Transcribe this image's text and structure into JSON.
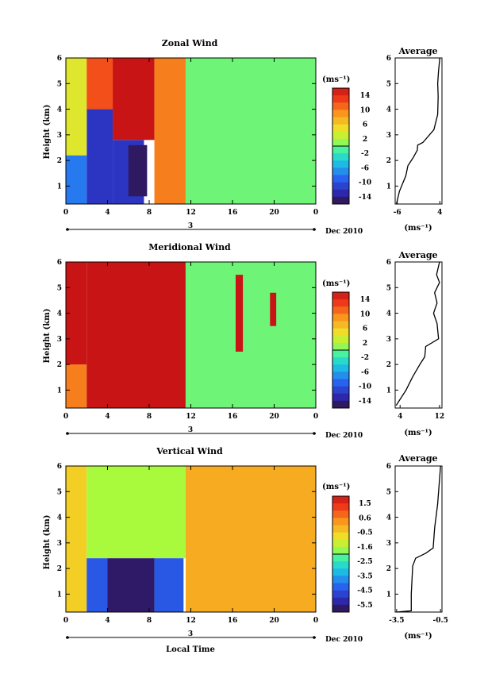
{
  "figure": {
    "local_time_label": "Local Time",
    "dec_label": "Dec 2010",
    "day_label": "3",
    "unit_label": "(ms⁻¹)"
  },
  "chart_data": [
    {
      "type": "heatmap",
      "title": "Zonal Wind",
      "xlabel": "",
      "ylabel": "Height (km)",
      "xlim": [
        0,
        24
      ],
      "ylim": [
        0.3,
        6
      ],
      "xticks": [
        "0",
        "4",
        "8",
        "12",
        "16",
        "20",
        "0"
      ],
      "xtick_values": [
        0,
        4,
        8,
        12,
        16,
        20,
        24
      ],
      "yticks": [
        "1",
        "2",
        "3",
        "4",
        "5",
        "6"
      ],
      "colorbar": {
        "unit": "(ms⁻¹)",
        "min": -16,
        "max": 16,
        "labels": [
          "14",
          "10",
          "6",
          "2",
          "-2",
          "-6",
          "-10",
          "-14"
        ]
      },
      "regions": [
        {
          "t": [
            0,
            2.0
          ],
          "h": [
            0.3,
            2.2
          ],
          "value": -8
        },
        {
          "t": [
            2.0,
            4.5
          ],
          "h": [
            0.3,
            4.0
          ],
          "value": -12
        },
        {
          "t": [
            4.5,
            7.5
          ],
          "h": [
            0.3,
            2.8
          ],
          "value": -12
        },
        {
          "t": [
            6.0,
            7.8
          ],
          "h": [
            0.6,
            2.6
          ],
          "value": -15
        },
        {
          "t": [
            0,
            2.0
          ],
          "h": [
            2.2,
            6.0
          ],
          "value": 4
        },
        {
          "t": [
            2.0,
            4.5
          ],
          "h": [
            4.0,
            6.0
          ],
          "value": 12
        },
        {
          "t": [
            4.5,
            8.5
          ],
          "h": [
            2.8,
            6.0
          ],
          "value": 16
        },
        {
          "t": [
            8.5,
            11.5
          ],
          "h": [
            0.3,
            6.0
          ],
          "value": 10
        },
        {
          "t": [
            11.5,
            24
          ],
          "h": [
            0.3,
            6.0
          ],
          "value": 0
        }
      ],
      "average_profile": {
        "title": "Average",
        "xlabel": "(ms⁻¹)",
        "xlim": [
          -6.5,
          4.5
        ],
        "xticks": [
          "-6",
          "4"
        ],
        "xtick_values": [
          -6,
          4
        ],
        "yticks": [
          "1",
          "2",
          "3",
          "4",
          "5",
          "6"
        ],
        "ylim": [
          0.3,
          6
        ],
        "x": [
          -6.2,
          -5.5,
          -4.0,
          -3.5,
          -2.3,
          -1.3,
          -1.2,
          0,
          2.6,
          3.5,
          3.6,
          3.5,
          3.7,
          4.0
        ],
        "y": [
          0.3,
          0.8,
          1.4,
          1.8,
          2.1,
          2.4,
          2.6,
          2.7,
          3.2,
          3.8,
          4.5,
          5.0,
          5.5,
          6.0
        ]
      }
    },
    {
      "type": "heatmap",
      "title": "Meridional Wind",
      "xlabel": "",
      "ylabel": "Height (km)",
      "xlim": [
        0,
        24
      ],
      "ylim": [
        0.3,
        6
      ],
      "xticks": [
        "0",
        "4",
        "8",
        "12",
        "16",
        "20",
        "0"
      ],
      "xtick_values": [
        0,
        4,
        8,
        12,
        16,
        20,
        24
      ],
      "yticks": [
        "1",
        "2",
        "3",
        "4",
        "5",
        "6"
      ],
      "colorbar": {
        "unit": "(ms⁻¹)",
        "min": -16,
        "max": 16,
        "labels": [
          "14",
          "10",
          "6",
          "2",
          "-2",
          "-6",
          "-10",
          "-14"
        ]
      },
      "regions": [
        {
          "t": [
            0,
            2.0
          ],
          "h": [
            0.3,
            2.0
          ],
          "value": 10
        },
        {
          "t": [
            0,
            2.0
          ],
          "h": [
            2.0,
            6.0
          ],
          "value": 16
        },
        {
          "t": [
            2.0,
            11.5
          ],
          "h": [
            0.3,
            6.0
          ],
          "value": 16
        },
        {
          "t": [
            11.5,
            24
          ],
          "h": [
            0.3,
            6.0
          ],
          "value": 0
        },
        {
          "t": [
            16.3,
            17.0
          ],
          "h": [
            2.5,
            5.5
          ],
          "value": 16
        },
        {
          "t": [
            19.6,
            20.2
          ],
          "h": [
            3.5,
            4.8
          ],
          "value": 16
        }
      ],
      "average_profile": {
        "title": "Average",
        "xlabel": "(ms⁻¹)",
        "xlim": [
          3,
          12.5
        ],
        "xticks": [
          "4",
          "12"
        ],
        "xtick_values": [
          4,
          12
        ],
        "yticks": [
          "1",
          "2",
          "3",
          "4",
          "5",
          "6"
        ],
        "ylim": [
          0.3,
          6
        ],
        "x": [
          3.2,
          5.2,
          6.5,
          8.0,
          9.0,
          9.2,
          11.8,
          11.5,
          10.8,
          11.5,
          11.0,
          12.0,
          11.4,
          12.0
        ],
        "y": [
          0.4,
          1.0,
          1.5,
          2.0,
          2.3,
          2.7,
          3.0,
          3.6,
          4.0,
          4.4,
          4.8,
          5.2,
          5.5,
          6.0
        ]
      }
    },
    {
      "type": "heatmap",
      "title": "Vertical Wind",
      "xlabel": "Local Time",
      "ylabel": "Height (km)",
      "xlim": [
        0,
        24
      ],
      "ylim": [
        0.3,
        6
      ],
      "xticks": [
        "0",
        "4",
        "8",
        "12",
        "16",
        "20",
        "0"
      ],
      "xtick_values": [
        0,
        4,
        8,
        12,
        16,
        20,
        24
      ],
      "yticks": [
        "1",
        "2",
        "3",
        "4",
        "5",
        "6"
      ],
      "colorbar": {
        "unit": "(ms⁻¹)",
        "min": -6.1,
        "max": 2.1,
        "labels": [
          "1.5",
          "0.6",
          "-0.5",
          "-1.6",
          "-2.5",
          "-3.5",
          "-4.5",
          "-5.5"
        ]
      },
      "regions": [
        {
          "t": [
            0,
            2.0
          ],
          "h": [
            0.3,
            6.0
          ],
          "value": -0.5
        },
        {
          "t": [
            2.0,
            11.5
          ],
          "h": [
            2.4,
            6.0
          ],
          "value": -1.6
        },
        {
          "t": [
            2.0,
            4.0
          ],
          "h": [
            0.3,
            2.4
          ],
          "value": -4.5
        },
        {
          "t": [
            4.0,
            8.5
          ],
          "h": [
            0.3,
            2.4
          ],
          "value": -5.8
        },
        {
          "t": [
            8.5,
            11.3
          ],
          "h": [
            0.3,
            2.4
          ],
          "value": -4.5
        },
        {
          "t": [
            11.5,
            24
          ],
          "h": [
            0.3,
            6.0
          ],
          "value": 0
        }
      ],
      "average_profile": {
        "title": "Average",
        "xlabel": "(ms⁻¹)",
        "xlim": [
          -3.6,
          -0.4
        ],
        "xticks": [
          "-3.5",
          "-0.5"
        ],
        "xtick_values": [
          -3.5,
          -0.5
        ],
        "yticks": [
          "1",
          "2",
          "3",
          "4",
          "5",
          "6"
        ],
        "ylim": [
          0.3,
          6
        ],
        "x": [
          -3.5,
          -2.5,
          -2.5,
          -2.4,
          -2.2,
          -1.5,
          -1.0,
          -0.9,
          -0.7,
          -0.5
        ],
        "y": [
          0.3,
          0.35,
          1.0,
          2.1,
          2.4,
          2.6,
          2.8,
          3.6,
          4.5,
          6.0
        ]
      }
    }
  ]
}
